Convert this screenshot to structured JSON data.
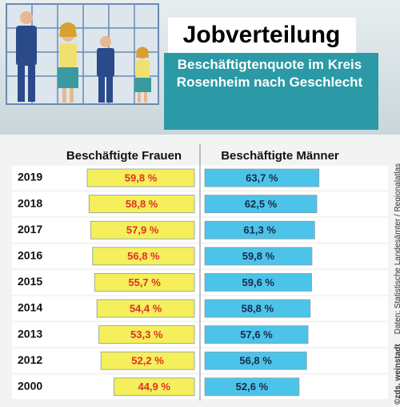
{
  "chart_data": {
    "type": "mirror-bar",
    "title": "Jobverteilung",
    "subtitle": "Beschäftigtenquote im Kreis Rosenheim nach Geschlecht",
    "credit": "©zds, weinstadt",
    "source": "Daten: Statistische Landesämter / Regionalatlas",
    "categories": [
      "2019",
      "2018",
      "2017",
      "2016",
      "2015",
      "2014",
      "2013",
      "2012",
      "2000"
    ],
    "series": [
      {
        "name": "Beschäftigte Frauen",
        "color": "#f4ef5a",
        "label_color": "#e0302a",
        "side": "left",
        "values": [
          59.8,
          58.8,
          57.9,
          56.8,
          55.7,
          54.4,
          53.3,
          52.2,
          44.9
        ],
        "value_labels": [
          "59,8 %",
          "58,8 %",
          "57,9 %",
          "56,8 %",
          "55,7 %",
          "54,4 %",
          "53,3 %",
          "52,2 %",
          "44,9 %"
        ]
      },
      {
        "name": "Beschäftigte Männer",
        "color": "#4cc4ea",
        "label_color": "#1a2a4a",
        "side": "right",
        "values": [
          63.7,
          62.5,
          61.3,
          59.8,
          59.6,
          58.8,
          57.6,
          56.8,
          52.6
        ],
        "value_labels": [
          "63,7 %",
          "62,5 %",
          "61,3 %",
          "59,8 %",
          "59,6 %",
          "58,8 %",
          "57,6 %",
          "56,8 %",
          "52,6 %"
        ]
      }
    ]
  }
}
